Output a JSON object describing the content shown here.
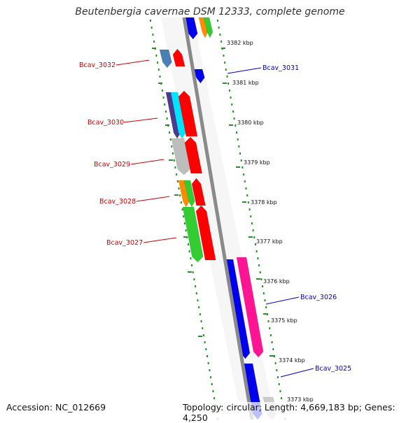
{
  "title": "Beutenbergia cavernae DSM 12333, complete genome",
  "accession": "Accession: NC_012669",
  "topology": "Topology: circular; Length: 4,669,183 bp; Genes: 4,250",
  "colors": {
    "backbone": "#8a8a8a",
    "dots": "#2e8b2e",
    "label_forward": "#cc0000",
    "label_reverse": "#0000cc"
  },
  "ticks": [
    "3382 kbp",
    "3381 kbp",
    "3380 kbp",
    "3379 kbp",
    "3378 kbp",
    "3377 kbp",
    "3376 kbp",
    "3375 kbp",
    "3374 kbp",
    "3373 kbp"
  ],
  "gene_labels": [
    {
      "text": "Bcav_3032",
      "side": "left"
    },
    {
      "text": "Bcav_3031",
      "side": "right"
    },
    {
      "text": "Bcav_3030",
      "side": "left"
    },
    {
      "text": "Bcav_3029",
      "side": "left"
    },
    {
      "text": "Bcav_3028",
      "side": "left"
    },
    {
      "text": "Bcav_3027",
      "side": "left"
    },
    {
      "text": "Bcav_3026",
      "side": "right"
    },
    {
      "text": "Bcav_3025",
      "side": "right"
    }
  ]
}
